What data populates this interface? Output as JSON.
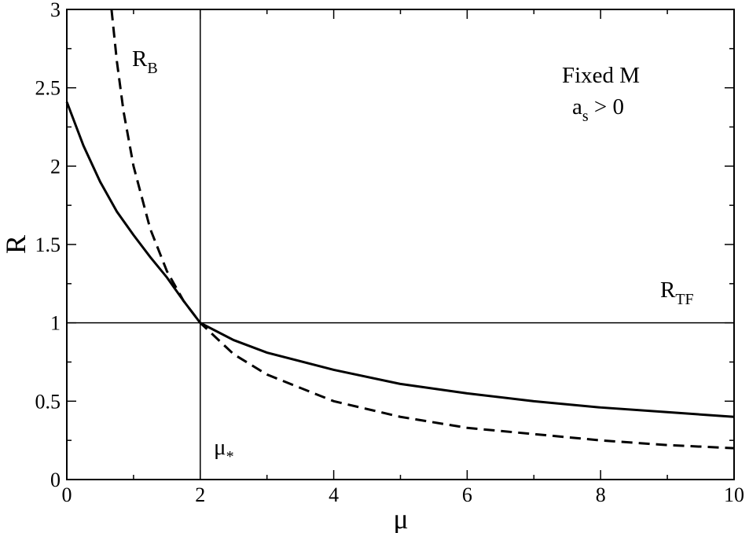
{
  "chart_data": {
    "type": "line",
    "xlabel": "μ",
    "ylabel": "R",
    "xlim": [
      0,
      10
    ],
    "ylim": [
      0,
      3
    ],
    "xticks": [
      0,
      2,
      4,
      6,
      8,
      10
    ],
    "xminorticks": [
      1,
      3,
      5,
      7,
      9
    ],
    "yticks": [
      0,
      0.5,
      1,
      1.5,
      2,
      2.5,
      3
    ],
    "yminorticks": [
      0.25,
      0.75,
      1.25,
      1.75,
      2.25,
      2.75
    ],
    "vlines": [
      2
    ],
    "hlines": [
      1
    ],
    "series": [
      {
        "style": "solid",
        "color": "#000000",
        "x": [
          0,
          0.25,
          0.5,
          0.75,
          1,
          1.25,
          1.5,
          1.75,
          2,
          2.5,
          3,
          4,
          5,
          6,
          7,
          8,
          9,
          10
        ],
        "values": [
          2.41,
          2.13,
          1.9,
          1.71,
          1.56,
          1.42,
          1.29,
          1.14,
          1,
          0.89,
          0.81,
          0.7,
          0.61,
          0.55,
          0.5,
          0.46,
          0.43,
          0.4
        ]
      },
      {
        "style": "dashed",
        "color": "#000000",
        "x": [
          0.67,
          0.75,
          0.85,
          1,
          1.25,
          1.5,
          1.75,
          2,
          2.5,
          3,
          4,
          5,
          6,
          7,
          8,
          9,
          10
        ],
        "values": [
          3,
          2.67,
          2.35,
          2,
          1.6,
          1.33,
          1.14,
          1,
          0.8,
          0.67,
          0.5,
          0.4,
          0.33,
          0.29,
          0.25,
          0.22,
          0.2
        ]
      }
    ],
    "annotations": [
      {
        "text": "R",
        "sub": "B"
      },
      {
        "text": "Fixed M"
      },
      {
        "text": "a",
        "sub": "s",
        "after": " > 0"
      },
      {
        "text": "R",
        "sub": "TF"
      },
      {
        "text": "μ",
        "sub": "*"
      }
    ]
  }
}
